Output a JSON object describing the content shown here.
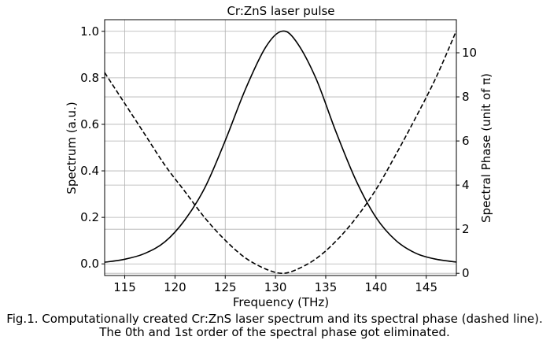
{
  "chart_data": {
    "type": "line",
    "title": "Cr:ZnS laser pulse",
    "xlabel": "Frequency (THz)",
    "ylabel": "Spectrum (a.u.)",
    "y2label": "Spectral Phase (unit of π)",
    "xlim": [
      113,
      148
    ],
    "ylim": [
      -0.05,
      1.05
    ],
    "y2lim": [
      -0.1,
      11.5
    ],
    "x_ticks": [
      115,
      120,
      125,
      130,
      135,
      140,
      145
    ],
    "y_ticks": [
      0.0,
      0.2,
      0.4,
      0.6,
      0.8,
      1.0
    ],
    "y2_ticks": [
      0,
      2,
      4,
      6,
      8,
      10
    ],
    "x_tick_labels": [
      "115",
      "120",
      "125",
      "130",
      "135",
      "140",
      "145"
    ],
    "y_tick_labels": [
      "0.0",
      "0.2",
      "0.4",
      "0.6",
      "0.8",
      "1.0"
    ],
    "y2_tick_labels": [
      "0",
      "2",
      "4",
      "6",
      "8",
      "10"
    ],
    "grid": true,
    "x": [
      113,
      115,
      117,
      119,
      121,
      123,
      125,
      127,
      129,
      130.6,
      132,
      134,
      136,
      138,
      140,
      142,
      144,
      146,
      148
    ],
    "series": [
      {
        "axis": "left",
        "style": "solid",
        "color": "#000000",
        "values": [
          0.007,
          0.02,
          0.045,
          0.095,
          0.19,
          0.33,
          0.53,
          0.75,
          0.93,
          1.0,
          0.96,
          0.8,
          0.57,
          0.36,
          0.2,
          0.1,
          0.045,
          0.02,
          0.008
        ]
      },
      {
        "axis": "right",
        "style": "dashed",
        "color": "#000000",
        "values": [
          9.1,
          7.7,
          6.3,
          4.9,
          3.7,
          2.5,
          1.5,
          0.7,
          0.2,
          0.0,
          0.15,
          0.65,
          1.45,
          2.5,
          3.8,
          5.4,
          7.1,
          8.9,
          11.0
        ]
      }
    ]
  },
  "caption": {
    "line1": "Fig.1. Computationally created Cr:ZnS laser spectrum and its spectral phase (dashed line).",
    "line2": "The 0th and 1st order of the spectral phase got eliminated."
  }
}
